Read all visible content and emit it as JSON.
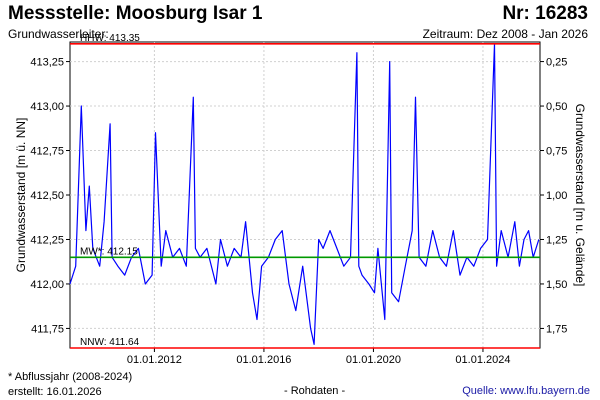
{
  "header": {
    "title": "Messstelle: Moosburg Isar 1",
    "nr": "Nr: 16283",
    "aquifer": "Grundwasserleiter:",
    "period": "Zeitraum: Dez 2008 - Jan 2026"
  },
  "footer": {
    "footnote": "* Abflussjahr (2008-2024)",
    "created": "erstellt:  16.01.2026",
    "rawdata": "- Rohdaten -",
    "source": "Quelle: www.lfu.bayern.de"
  },
  "chart_data": {
    "type": "line",
    "ylabel": "Grundwasserstand [m ü. NN]",
    "ylabel_right": "Grundwasserstand [m u. Gelände]",
    "ylim": [
      411.64,
      413.36
    ],
    "xlim": [
      "2008-12-01",
      "2026-01-31"
    ],
    "grid": true,
    "x_ticks": [
      "01.01.2012",
      "01.01.2016",
      "01.01.2020",
      "01.01.2024"
    ],
    "y_ticks_left": [
      {
        "value": 411.75,
        "label": "411,75"
      },
      {
        "value": 412.0,
        "label": "412,00"
      },
      {
        "value": 412.25,
        "label": "412,25"
      },
      {
        "value": 412.5,
        "label": "412,50"
      },
      {
        "value": 412.75,
        "label": "412,75"
      },
      {
        "value": 413.0,
        "label": "413,00"
      },
      {
        "value": 413.25,
        "label": "413,25"
      }
    ],
    "y_ticks_right": [
      {
        "value": 411.75,
        "label": "1,75"
      },
      {
        "value": 412.0,
        "label": "1,50"
      },
      {
        "value": 412.25,
        "label": "1,25"
      },
      {
        "value": 412.5,
        "label": "1,00"
      },
      {
        "value": 412.75,
        "label": "0,75"
      },
      {
        "value": 413.0,
        "label": "0,50"
      },
      {
        "value": 413.25,
        "label": "0,25"
      }
    ],
    "reference_lines": [
      {
        "label": "HHW: 413.35",
        "value": 413.35,
        "color": "#ff0000"
      },
      {
        "label": "MW*: 412.15",
        "value": 412.15,
        "color": "#009900"
      },
      {
        "label": "NNW: 411.64",
        "value": 411.64,
        "color": "#ff0000"
      }
    ],
    "series": [
      {
        "color": "#0000ff",
        "x": [
          "2008-12-01",
          "2009-02-15",
          "2009-05-01",
          "2009-07-01",
          "2009-08-15",
          "2009-10-01",
          "2010-01-01",
          "2010-03-01",
          "2010-05-20",
          "2010-06-15",
          "2010-09-01",
          "2010-12-01",
          "2011-03-01",
          "2011-06-01",
          "2011-09-01",
          "2011-12-01",
          "2012-01-15",
          "2012-04-01",
          "2012-06-01",
          "2012-09-01",
          "2012-12-01",
          "2013-03-01",
          "2013-06-03",
          "2013-07-01",
          "2013-09-01",
          "2013-12-01",
          "2014-04-01",
          "2014-06-01",
          "2014-09-01",
          "2014-12-01",
          "2015-03-01",
          "2015-05-01",
          "2015-08-01",
          "2015-10-01",
          "2015-12-01",
          "2016-03-01",
          "2016-06-01",
          "2016-09-01",
          "2016-12-01",
          "2017-03-01",
          "2017-06-01",
          "2017-09-15",
          "2017-11-01",
          "2018-01-01",
          "2018-03-01",
          "2018-06-01",
          "2018-09-01",
          "2018-12-01",
          "2019-03-01",
          "2019-05-25",
          "2019-06-20",
          "2019-08-01",
          "2019-11-01",
          "2020-01-15",
          "2020-03-01",
          "2020-06-01",
          "2020-08-05",
          "2020-09-01",
          "2020-12-01",
          "2021-03-01",
          "2021-06-01",
          "2021-07-15",
          "2021-09-01",
          "2021-12-01",
          "2022-03-01",
          "2022-06-01",
          "2022-09-01",
          "2022-12-01",
          "2023-03-01",
          "2023-06-01",
          "2023-09-01",
          "2023-12-01",
          "2024-03-01",
          "2024-06-03",
          "2024-07-01",
          "2024-09-01",
          "2024-12-01",
          "2025-03-01",
          "2025-05-01",
          "2025-07-01",
          "2025-09-01",
          "2025-11-01",
          "2026-01-15"
        ],
        "values": [
          412.0,
          412.1,
          413.0,
          412.3,
          412.55,
          412.2,
          412.1,
          412.35,
          412.9,
          412.15,
          412.1,
          412.05,
          412.15,
          412.2,
          412.0,
          412.05,
          412.85,
          412.1,
          412.3,
          412.15,
          412.2,
          412.1,
          413.05,
          412.2,
          412.15,
          412.2,
          412.0,
          412.25,
          412.1,
          412.2,
          412.15,
          412.35,
          411.95,
          411.8,
          412.1,
          412.15,
          412.25,
          412.3,
          412.0,
          411.85,
          412.1,
          411.75,
          411.66,
          412.25,
          412.2,
          412.3,
          412.2,
          412.1,
          412.15,
          413.3,
          412.1,
          412.05,
          412.0,
          411.95,
          412.2,
          411.8,
          413.25,
          411.95,
          411.9,
          412.1,
          412.3,
          413.05,
          412.15,
          412.1,
          412.3,
          412.15,
          412.1,
          412.3,
          412.05,
          412.15,
          412.1,
          412.2,
          412.25,
          413.35,
          412.1,
          412.3,
          412.15,
          412.35,
          412.1,
          412.25,
          412.3,
          412.15,
          412.25
        ]
      }
    ]
  }
}
